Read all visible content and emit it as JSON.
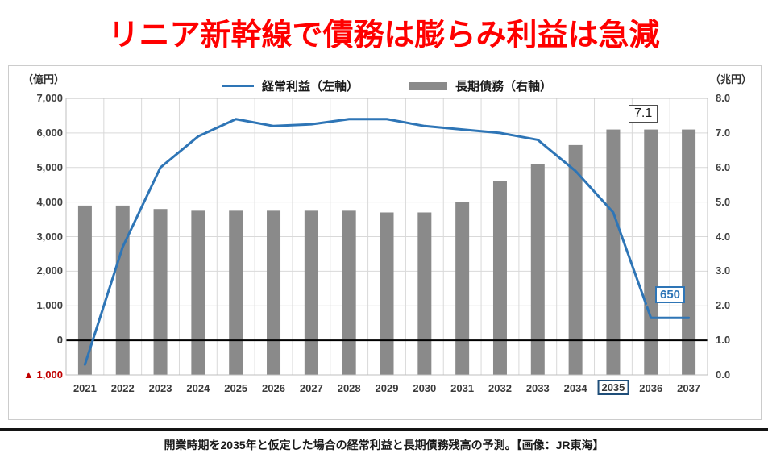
{
  "title": "リニア新幹線で債務は膨らみ利益は急減",
  "caption": "開業時期を2035年と仮定した場合の経常利益と長期債務残高の予測。【画像：JR東海】",
  "chart": {
    "left_axis_unit": "（億円）",
    "right_axis_unit": "（兆円）",
    "left_ticks": [
      "7,000",
      "6,000",
      "5,000",
      "4,000",
      "3,000",
      "2,000",
      "1,000",
      "0",
      "▲ 1,000"
    ],
    "right_ticks": [
      "8.0",
      "7.0",
      "6.0",
      "5.0",
      "4.0",
      "3.0",
      "2.0",
      "1.0",
      "0.0"
    ],
    "legend": [
      {
        "label": "経常利益（左軸）",
        "type": "line",
        "color": "#2E75B6"
      },
      {
        "label": "長期債務（右軸）",
        "type": "bar",
        "color": "#8A8A8A"
      }
    ],
    "annotations": {
      "debt_peak_label": "7.1",
      "profit_low_label": "650",
      "highlight_year": "2035"
    },
    "colors": {
      "line": "#2E75B6",
      "bar": "#8A8A8A",
      "title_red": "#FF0000",
      "negative_tick_red": "#C00000",
      "highlight_box_blue": "#1F4E79",
      "gridline": "#D9D9D9",
      "plot_border": "#BFBFBF",
      "zero_line": "#000000"
    }
  },
  "chart_data": {
    "type": "bar+line combo",
    "categories": [
      "2021",
      "2022",
      "2023",
      "2024",
      "2025",
      "2026",
      "2027",
      "2028",
      "2029",
      "2030",
      "2031",
      "2032",
      "2033",
      "2034",
      "2035",
      "2036",
      "2037"
    ],
    "series": [
      {
        "name": "経常利益（左軸）",
        "type": "line",
        "axis": "left",
        "unit": "億円",
        "color": "#2E75B6",
        "values": [
          -700,
          2700,
          5000,
          5900,
          6400,
          6200,
          6250,
          6400,
          6400,
          6200,
          6100,
          6000,
          5800,
          4900,
          3700,
          650,
          650
        ]
      },
      {
        "name": "長期債務（右軸）",
        "type": "bar",
        "axis": "right",
        "unit": "兆円",
        "color": "#8A8A8A",
        "values": [
          4.9,
          4.9,
          4.8,
          4.75,
          4.75,
          4.75,
          4.75,
          4.75,
          4.7,
          4.7,
          5.0,
          5.6,
          6.1,
          6.65,
          7.1,
          7.1,
          7.1
        ]
      }
    ],
    "left_axis": {
      "label": "（億円）",
      "range": [
        -1000,
        7000
      ],
      "tick_step": 1000
    },
    "right_axis": {
      "label": "（兆円）",
      "range": [
        0.0,
        8.0
      ],
      "tick_step": 1.0
    },
    "grid": true,
    "legend_position": "top",
    "annotations": [
      {
        "text": "7.1",
        "attached_to": "長期債務 2036 bar top"
      },
      {
        "text": "650",
        "attached_to": "経常利益 2036 line low point"
      },
      {
        "text": "2035",
        "attached_to": "x-axis label highlighted with blue box"
      }
    ]
  }
}
